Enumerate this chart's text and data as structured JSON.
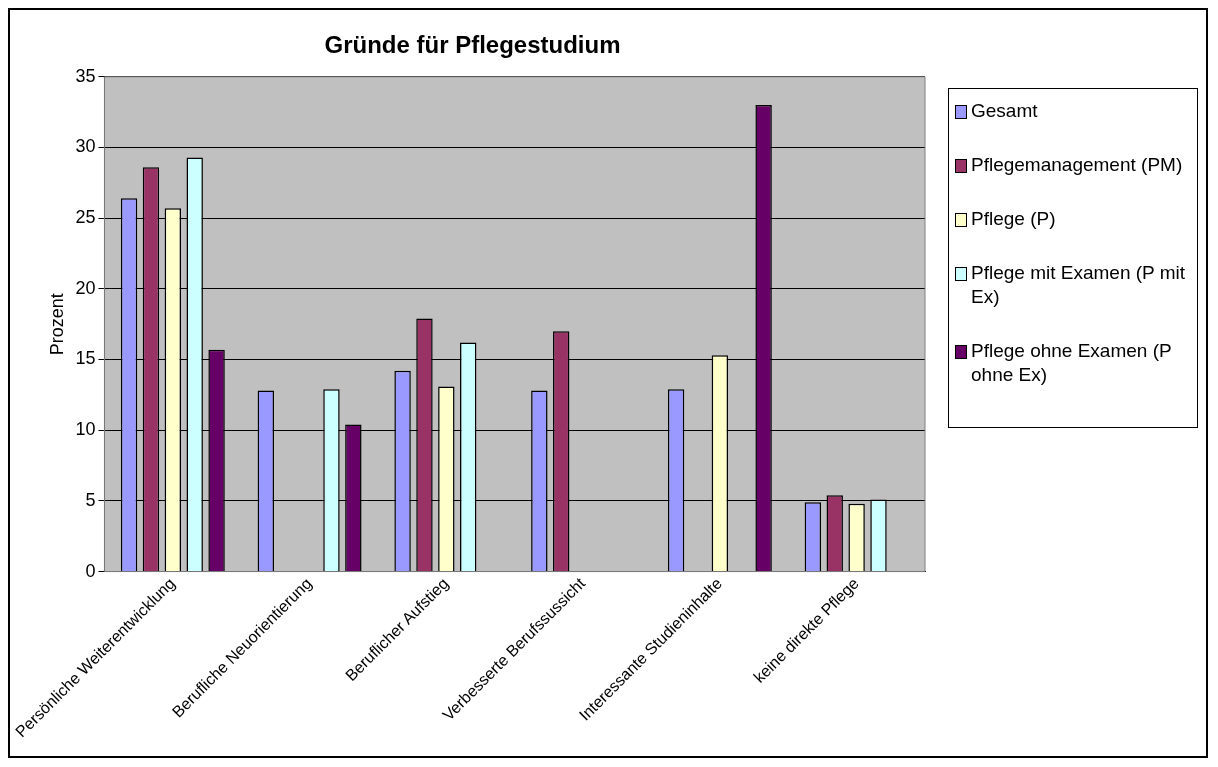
{
  "chart_data": {
    "type": "bar",
    "title": "Gründe für Pflegestudium",
    "ylabel": "Prozent",
    "categories": [
      "Persönliche Weiterentwicklung",
      "Berufliche Neuorientierung",
      "Beruflicher Aufstieg",
      "Verbesserte Berufssussicht",
      "Interessante Studieninhalte",
      "keine direkte Pflege"
    ],
    "series": [
      {
        "name": "Gesamt",
        "color": "#9999ff",
        "values": [
          26.4,
          12.8,
          14.2,
          12.8,
          12.9,
          4.9
        ]
      },
      {
        "name": "Pflegemanagement (PM)",
        "color": "#993366",
        "values": [
          28.6,
          null,
          17.9,
          17.0,
          null,
          5.4
        ]
      },
      {
        "name": "Pflege (P)",
        "color": "#ffffcc",
        "values": [
          25.7,
          null,
          13.1,
          null,
          15.3,
          4.8
        ]
      },
      {
        "name": "Pflege mit Examen (P mit Ex)",
        "color": "#ccffff",
        "values": [
          29.3,
          12.9,
          16.2,
          null,
          null,
          5.1
        ]
      },
      {
        "name": "Pflege ohne Examen (P ohne Ex)",
        "color": "#660066",
        "values": [
          15.7,
          10.4,
          null,
          null,
          33.0,
          null
        ]
      }
    ],
    "ylim": [
      0,
      35
    ],
    "yticks": [
      0,
      5,
      10,
      15,
      20,
      25,
      30,
      35
    ],
    "grid": "y",
    "legend": "right"
  }
}
